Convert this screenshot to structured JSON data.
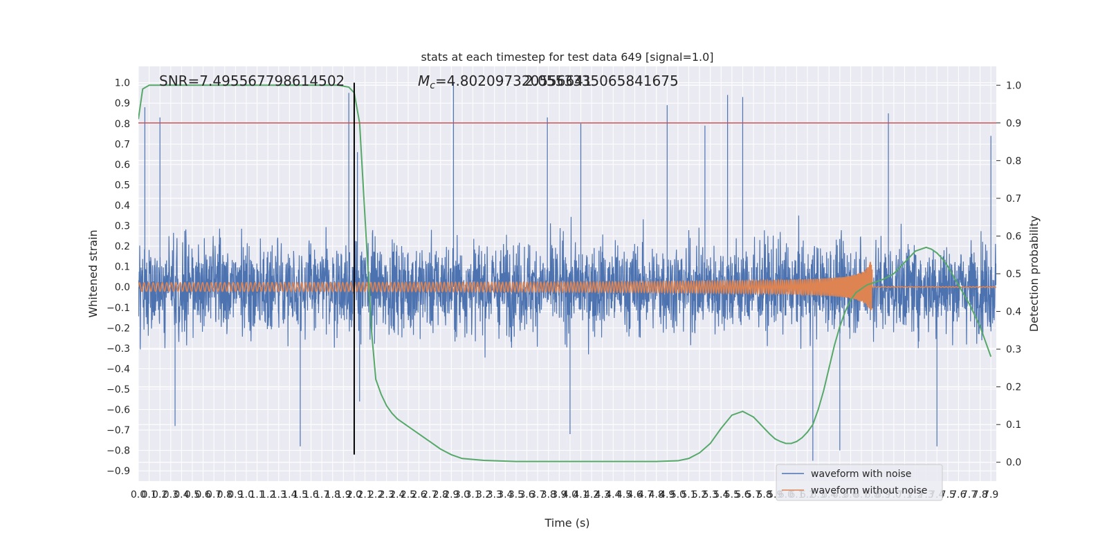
{
  "chart_data": {
    "type": "line",
    "title": "stats at each timestep for test data 649 [signal=1.0]",
    "xlabel": "Time (s)",
    "ylabel": "Whitened strain",
    "y2label": "Detection probability",
    "xlim": [
      0.0,
      7.95
    ],
    "ylim": [
      -0.95,
      1.08
    ],
    "y2lim": [
      -0.05,
      1.05
    ],
    "x_tick_step": 0.1,
    "y_ticks": [
      -0.9,
      -0.8,
      -0.7,
      -0.6,
      -0.5,
      -0.4,
      -0.3,
      -0.2,
      -0.1,
      0.0,
      0.1,
      0.2,
      0.3,
      0.4,
      0.5,
      0.6,
      0.7,
      0.8,
      0.9,
      1.0
    ],
    "y_tick_labels": [
      "−0.9",
      "−0.8",
      "−0.7",
      "−0.6",
      "−0.5",
      "−0.4",
      "−0.3",
      "−0.2",
      "−0.1",
      "0.0",
      "0.1",
      "0.2",
      "0.3",
      "0.4",
      "0.5",
      "0.6",
      "0.7",
      "0.8",
      "0.9",
      "1.0"
    ],
    "y2_ticks": [
      0.0,
      0.1,
      0.2,
      0.3,
      0.4,
      0.5,
      0.6,
      0.7,
      0.8,
      0.9,
      1.0
    ],
    "y2_tick_labels": [
      "0.0",
      "0.1",
      "0.2",
      "0.3",
      "0.4",
      "0.5",
      "0.6",
      "0.7",
      "0.8",
      "0.9",
      "1.0"
    ],
    "grid": true,
    "legend_position": "lower-right",
    "annotations": {
      "snr": "SNR=7.495567798614502",
      "mc": "=4.802097320556641",
      "mc_symbol": "M",
      "mc_sub": "c",
      "overlap": "2.0553335065841675"
    },
    "threshold_line": {
      "y2": 0.9,
      "color": "#c44e52"
    },
    "vertical_marker": {
      "x": 2.0,
      "y_from": -0.82,
      "y_to": 1.0,
      "color": "#000000"
    },
    "series": [
      {
        "name": "waveform with noise",
        "color": "#4c72b0",
        "axis": "left",
        "style": "noise",
        "envelope_abs": 0.28,
        "sample_peaks": [
          {
            "x": 0.06,
            "y": 0.88
          },
          {
            "x": 0.2,
            "y": 0.83
          },
          {
            "x": 1.95,
            "y": 0.95
          },
          {
            "x": 2.03,
            "y": 0.66
          },
          {
            "x": 2.92,
            "y": 1.0
          },
          {
            "x": 3.79,
            "y": 0.83
          },
          {
            "x": 4.1,
            "y": 0.8
          },
          {
            "x": 4.9,
            "y": 0.89
          },
          {
            "x": 5.25,
            "y": 0.79
          },
          {
            "x": 5.46,
            "y": 0.94
          },
          {
            "x": 5.6,
            "y": 0.93
          },
          {
            "x": 6.95,
            "y": 0.85
          },
          {
            "x": 7.9,
            "y": 0.74
          },
          {
            "x": 0.34,
            "y": -0.68
          },
          {
            "x": 1.5,
            "y": -0.78
          },
          {
            "x": 2.05,
            "y": -0.56
          },
          {
            "x": 6.25,
            "y": -0.85
          },
          {
            "x": 6.5,
            "y": -0.8
          },
          {
            "x": 7.4,
            "y": -0.78
          },
          {
            "x": 4.0,
            "y": -0.72
          }
        ]
      },
      {
        "name": "waveform without noise",
        "color": "#dd8452",
        "axis": "left",
        "style": "chirp",
        "amplitude_start": 0.015,
        "amplitude_peak": 0.17,
        "merger_time": 6.8,
        "cycles": 320
      },
      {
        "name": "detection probability",
        "color": "#55a868",
        "axis": "right",
        "x": [
          0.0,
          0.04,
          0.1,
          0.2,
          0.4,
          0.8,
          1.2,
          1.6,
          1.85,
          1.95,
          2.0,
          2.05,
          2.08,
          2.12,
          2.16,
          2.2,
          2.25,
          2.3,
          2.35,
          2.4,
          2.5,
          2.6,
          2.7,
          2.8,
          2.9,
          3.0,
          3.2,
          3.5,
          4.0,
          4.5,
          4.8,
          5.0,
          5.1,
          5.2,
          5.3,
          5.4,
          5.5,
          5.6,
          5.7,
          5.75,
          5.8,
          5.85,
          5.9,
          5.95,
          6.0,
          6.05,
          6.1,
          6.15,
          6.2,
          6.25,
          6.3,
          6.35,
          6.4,
          6.45,
          6.5,
          6.55,
          6.6,
          6.65,
          6.7,
          6.75,
          6.8,
          6.9,
          7.0,
          7.1,
          7.2,
          7.3,
          7.35,
          7.4,
          7.45,
          7.5,
          7.6,
          7.7,
          7.8,
          7.85,
          7.9
        ],
        "values": [
          0.91,
          0.99,
          1.0,
          1.0,
          1.0,
          1.0,
          1.0,
          1.0,
          1.0,
          0.995,
          0.98,
          0.9,
          0.75,
          0.55,
          0.35,
          0.22,
          0.18,
          0.15,
          0.13,
          0.115,
          0.095,
          0.075,
          0.055,
          0.035,
          0.02,
          0.01,
          0.005,
          0.002,
          0.002,
          0.002,
          0.002,
          0.004,
          0.01,
          0.025,
          0.05,
          0.09,
          0.125,
          0.135,
          0.12,
          0.105,
          0.09,
          0.075,
          0.062,
          0.055,
          0.05,
          0.05,
          0.055,
          0.065,
          0.08,
          0.1,
          0.14,
          0.19,
          0.25,
          0.31,
          0.36,
          0.4,
          0.43,
          0.45,
          0.46,
          0.47,
          0.475,
          0.485,
          0.5,
          0.53,
          0.56,
          0.57,
          0.565,
          0.555,
          0.54,
          0.52,
          0.47,
          0.42,
          0.36,
          0.32,
          0.28
        ]
      }
    ],
    "legend": [
      "waveform with noise",
      "waveform without noise"
    ]
  }
}
